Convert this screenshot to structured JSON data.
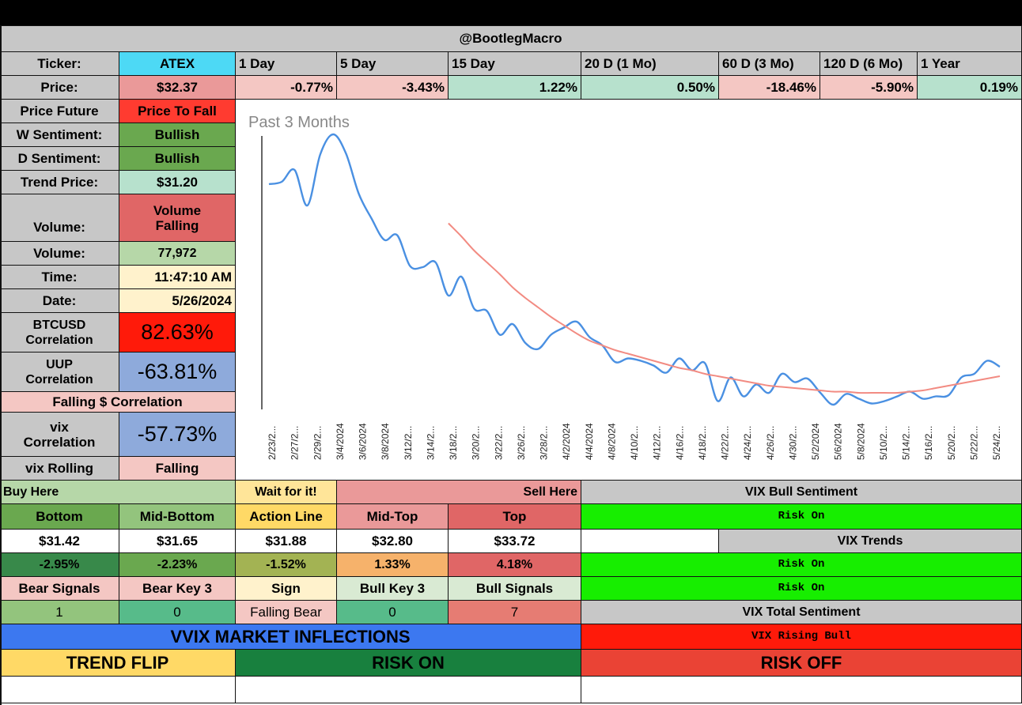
{
  "header": {
    "handle": "@BootlegMacro"
  },
  "ticker": {
    "label": "Ticker:",
    "value": "ATEX"
  },
  "periods": [
    "1 Day",
    "5 Day",
    "15 Day",
    "20 D (1 Mo)",
    "60 D (3 Mo)",
    "120 D (6 Mo)",
    "1 Year"
  ],
  "price": {
    "label": "Price:",
    "value": "$32.37",
    "changes": [
      "-0.77%",
      "-3.43%",
      "1.22%",
      "0.50%",
      "-18.46%",
      "-5.90%",
      "0.19%"
    ]
  },
  "stats": {
    "price_future": {
      "label": "Price Future",
      "value": "Price To Fall"
    },
    "w_sentiment": {
      "label": "W Sentiment:",
      "value": "Bullish"
    },
    "d_sentiment": {
      "label": "D Sentiment:",
      "value": "Bullish"
    },
    "trend_price": {
      "label": "Trend Price:",
      "value": "$31.20"
    },
    "volume_status": {
      "label": "Volume:",
      "value": "Volume Falling"
    },
    "volume": {
      "label": "Volume:",
      "value": "77,972"
    },
    "time": {
      "label": "Time:",
      "value": "11:47:10 AM"
    },
    "date": {
      "label": "Date:",
      "value": "5/26/2024"
    },
    "btcusd": {
      "label": "BTCUSD Correlation",
      "value": "82.63%"
    },
    "uup": {
      "label": "UUP Correlation",
      "value": "-63.81%"
    },
    "falling": {
      "label": "Falling $ Correlation"
    },
    "vix": {
      "label": "vix Correlation",
      "value": "-57.73%"
    },
    "vix_rolling": {
      "label": "vix Rolling",
      "value": "Falling"
    }
  },
  "levels": {
    "buy_here": "Buy Here",
    "wait": "Wait for it!",
    "sell_here": "Sell Here",
    "names": [
      "Bottom",
      "Mid-Bottom",
      "Action Line",
      "Mid-Top",
      "Top"
    ],
    "prices": [
      "$31.42",
      "$31.65",
      "$31.88",
      "$32.80",
      "$33.72"
    ],
    "pcts": [
      "-2.95%",
      "-2.23%",
      "-1.52%",
      "1.33%",
      "4.18%"
    ]
  },
  "signals": {
    "labels": [
      "Bear Signals",
      "Bear Key 3",
      "Sign",
      "Bull Key 3",
      "Bull Signals"
    ],
    "values": [
      "1",
      "0",
      "Falling Bear",
      "0",
      "7"
    ]
  },
  "vix_panel": {
    "bull_sentiment_title": "VIX Bull Sentiment",
    "bull_sentiment": "Risk On",
    "trends_title": "VIX Trends",
    "trend_1": "Risk On",
    "trend_2": "Risk On",
    "total_title": "VIX Total Sentiment",
    "total": "VIX Rising Bull"
  },
  "inflections": {
    "title": "VVIX MARKET INFLECTIONS",
    "trend_flip": "TREND FLIP",
    "risk_on": "RISK ON",
    "risk_off": "RISK OFF"
  },
  "colors": {
    "price_line": "#4a90e2",
    "trend_line": "#f28b82",
    "up": "#b7e1cd",
    "down": "#f4c7c3"
  },
  "chart_data": {
    "type": "line",
    "title": "Past 3 Months",
    "x_tick_labels": [
      "2/23/2...",
      "2/27/2...",
      "2/29/2...",
      "3/4/2024",
      "3/6/2024",
      "3/8/2024",
      "3/12/2...",
      "3/14/2...",
      "3/18/2...",
      "3/20/2...",
      "3/22/2...",
      "3/26/2...",
      "3/28/2...",
      "4/2/2024",
      "4/4/2024",
      "4/8/2024",
      "4/10/2...",
      "4/12/2...",
      "4/16/2...",
      "4/18/2...",
      "4/22/2...",
      "4/24/2...",
      "4/26/2...",
      "4/30/2...",
      "5/2/2024",
      "5/6/2024",
      "5/8/2024",
      "5/10/2...",
      "5/14/2...",
      "5/16/2...",
      "5/20/2...",
      "5/22/2...",
      "5/24/2..."
    ],
    "series": [
      {
        "values": [
          43.3,
          43.5,
          44.5,
          41.5,
          45.8,
          47.5,
          45.9,
          42.5,
          40.4,
          38.6,
          39.0,
          36.4,
          36.3,
          36.7,
          33.9,
          35.5,
          32.8,
          32.6,
          30.6,
          31.5,
          29.9,
          29.4,
          30.6,
          31.2,
          31.7,
          30.4,
          29.7,
          28.3,
          28.6,
          28.4,
          28.0,
          27.4,
          28.6,
          27.6,
          28.2,
          25.0,
          27.0,
          25.4,
          26.4,
          25.7,
          27.3,
          26.6,
          26.9,
          25.7,
          24.7,
          25.6,
          25.2,
          24.8,
          25.0,
          25.4,
          25.8,
          25.2,
          25.4,
          25.5,
          27.0,
          27.3,
          28.4,
          27.9
        ]
      },
      {
        "values": [
          null,
          null,
          null,
          null,
          null,
          null,
          null,
          null,
          null,
          null,
          null,
          null,
          null,
          null,
          40.0,
          38.9,
          37.7,
          36.7,
          35.7,
          34.6,
          33.7,
          32.9,
          32.1,
          31.4,
          30.7,
          30.1,
          29.7,
          29.3,
          29.0,
          28.7,
          28.4,
          28.1,
          27.8,
          27.6,
          27.3,
          27.1,
          26.9,
          26.7,
          26.5,
          26.3,
          26.2,
          26.1,
          26.0,
          25.9,
          25.8,
          25.8,
          25.7,
          25.7,
          25.7,
          25.7,
          25.8,
          25.9,
          26.1,
          26.3,
          26.5,
          26.7,
          26.9,
          27.1
        ]
      }
    ],
    "ylim": [
      24.3,
      47.5
    ]
  }
}
